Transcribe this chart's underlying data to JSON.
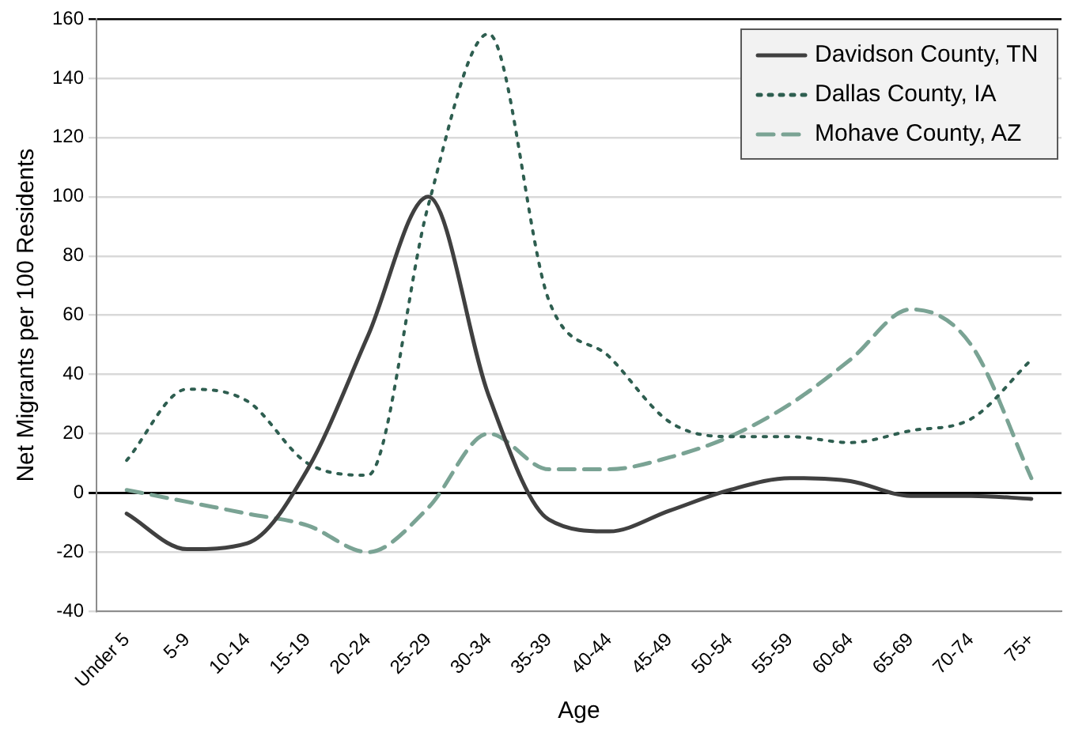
{
  "chart_data": {
    "type": "line",
    "xlabel": "Age",
    "ylabel": "Net Migrants per 100 Residents",
    "categories": [
      "Under 5",
      "5-9",
      "10-14",
      "15-19",
      "20-24",
      "25-29",
      "30-34",
      "35-39",
      "40-44",
      "45-49",
      "50-54",
      "55-59",
      "60-64",
      "65-69",
      "70-74",
      "75+"
    ],
    "series": [
      {
        "name": "Davidson County, TN",
        "color": "#404040",
        "line_style": "solid",
        "values": [
          -7,
          -19,
          -17,
          8,
          53,
          100,
          33,
          -9,
          -13,
          -6,
          1,
          5,
          4,
          -1,
          -1,
          -2
        ]
      },
      {
        "name": "Dallas County, IA",
        "color": "#2e5e50",
        "line_style": "dotted",
        "values": [
          11,
          35,
          31,
          10,
          6,
          97,
          155,
          65,
          46,
          24,
          19,
          19,
          17,
          21,
          25,
          45
        ]
      },
      {
        "name": "Mohave County, AZ",
        "color": "#7aa394",
        "line_style": "dashed",
        "values": [
          1,
          -3,
          -7,
          -11,
          -20,
          -5,
          20,
          8,
          8,
          12,
          19,
          30,
          45,
          62,
          50,
          5
        ]
      }
    ],
    "ylim": [
      -40,
      160
    ],
    "yticks": [
      -40,
      -20,
      0,
      20,
      40,
      60,
      80,
      100,
      120,
      140,
      160
    ],
    "grid": "y",
    "legend": "top right",
    "marker": "none"
  }
}
